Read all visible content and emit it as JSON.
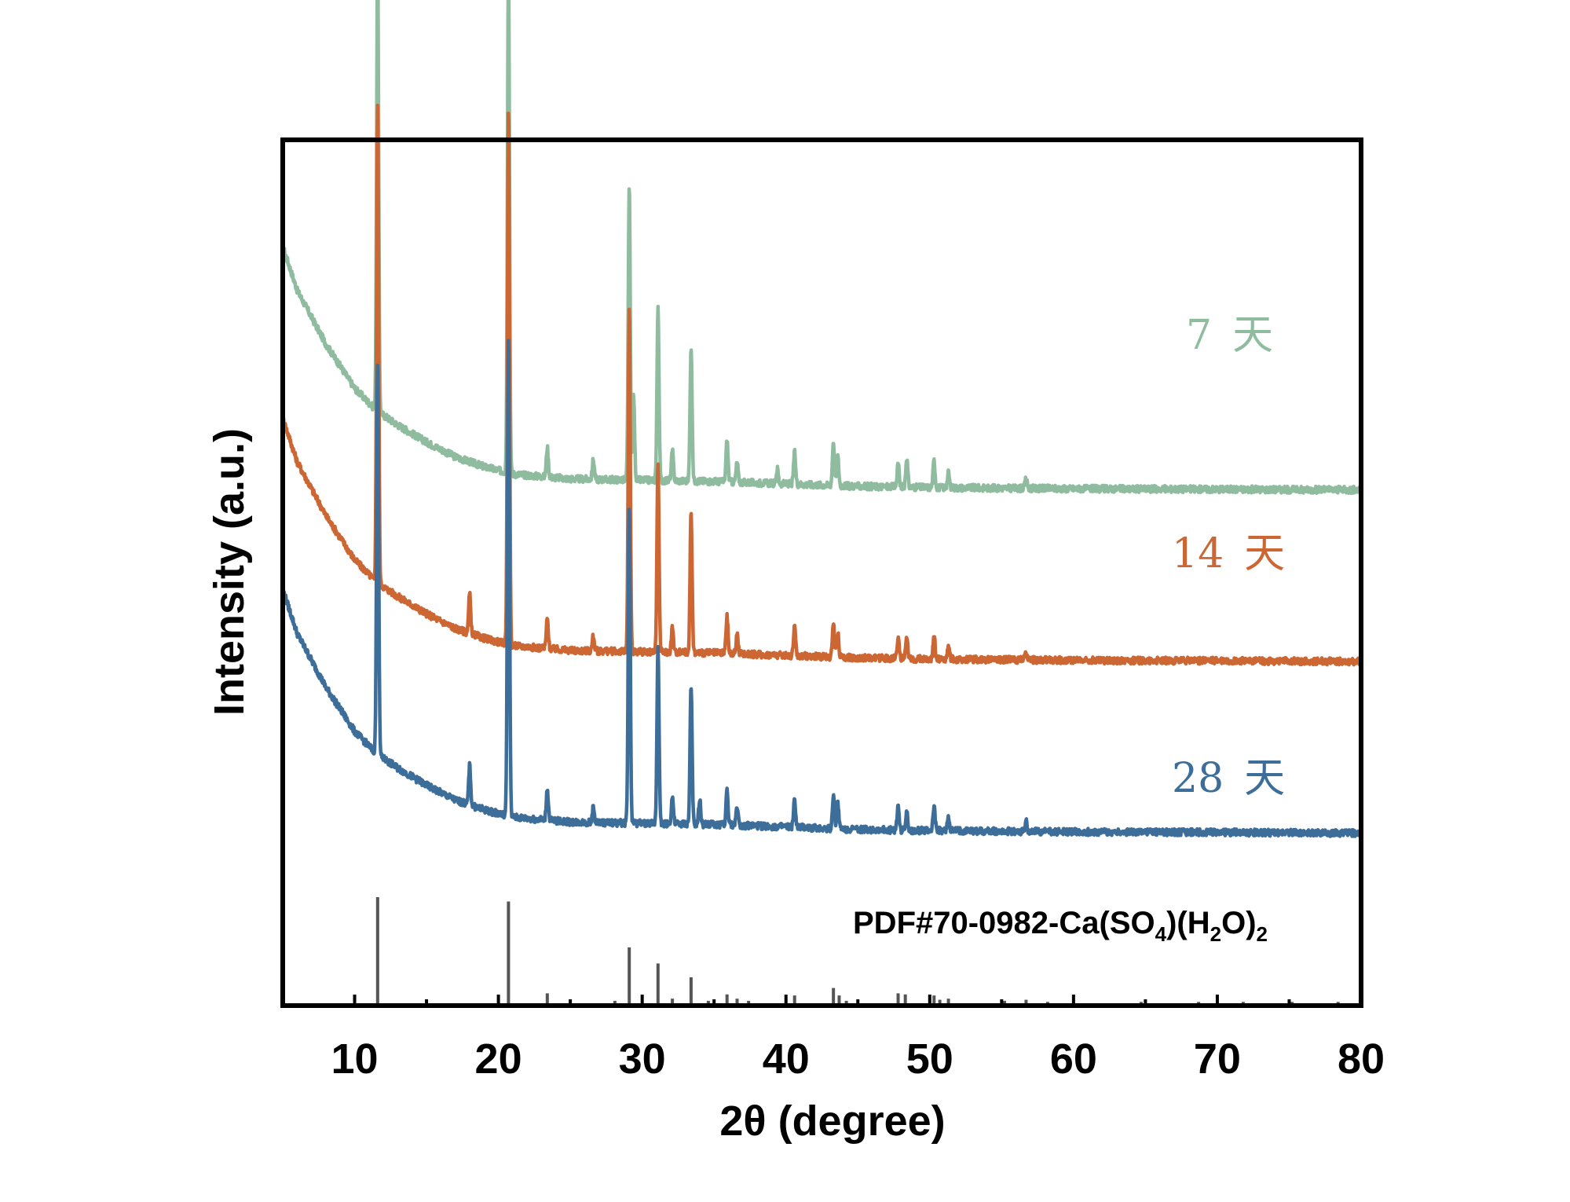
{
  "chart_data": {
    "type": "line",
    "xlabel": "2θ (degree)",
    "ylabel": "Intensity (a.u.)",
    "xlim": [
      5,
      80
    ],
    "xticks": [
      10,
      20,
      30,
      40,
      50,
      60,
      70,
      80
    ],
    "y_units": "arbitrary (stacked, offset)",
    "series": [
      {
        "name": "7 天",
        "label_number": "7",
        "label_unit": "天",
        "color": "#8fbc9f",
        "offset": 1.4,
        "baseline_points": [
          [
            5,
            1.0
          ],
          [
            6,
            0.82
          ],
          [
            8,
            0.6
          ],
          [
            10,
            0.42
          ],
          [
            11.5,
            0.33
          ],
          [
            13,
            0.27
          ],
          [
            15,
            0.2
          ],
          [
            17,
            0.14
          ],
          [
            19,
            0.1
          ],
          [
            21,
            0.07
          ],
          [
            25,
            0.05
          ],
          [
            30,
            0.045
          ],
          [
            35,
            0.04
          ],
          [
            40,
            0.03
          ],
          [
            45,
            0.02
          ],
          [
            50,
            0.015
          ],
          [
            60,
            0.01
          ],
          [
            70,
            0.008
          ],
          [
            80,
            0.005
          ]
        ],
        "peaks": [
          [
            11.6,
            1.85
          ],
          [
            20.7,
            2.1
          ],
          [
            23.4,
            0.12
          ],
          [
            26.6,
            0.08
          ],
          [
            29.1,
            1.2
          ],
          [
            29.4,
            0.35
          ],
          [
            31.1,
            0.7
          ],
          [
            32.1,
            0.12
          ],
          [
            33.4,
            0.55
          ],
          [
            35.9,
            0.17
          ],
          [
            36.6,
            0.08
          ],
          [
            39.4,
            0.06
          ],
          [
            40.6,
            0.13
          ],
          [
            43.3,
            0.18
          ],
          [
            43.6,
            0.12
          ],
          [
            47.8,
            0.1
          ],
          [
            48.4,
            0.12
          ],
          [
            50.3,
            0.11
          ],
          [
            51.3,
            0.06
          ],
          [
            56.7,
            0.04
          ]
        ]
      },
      {
        "name": "14 天",
        "label_number": "14",
        "label_unit": "天",
        "color": "#cc6633",
        "offset": 0.7,
        "baseline_points": [
          [
            5,
            1.0
          ],
          [
            6,
            0.82
          ],
          [
            8,
            0.6
          ],
          [
            10,
            0.42
          ],
          [
            11.5,
            0.33
          ],
          [
            13,
            0.27
          ],
          [
            15,
            0.2
          ],
          [
            17,
            0.14
          ],
          [
            19,
            0.1
          ],
          [
            21,
            0.07
          ],
          [
            25,
            0.05
          ],
          [
            30,
            0.045
          ],
          [
            35,
            0.04
          ],
          [
            40,
            0.03
          ],
          [
            45,
            0.02
          ],
          [
            50,
            0.015
          ],
          [
            60,
            0.01
          ],
          [
            70,
            0.008
          ],
          [
            80,
            0.005
          ]
        ],
        "peaks": [
          [
            11.6,
            1.95
          ],
          [
            18.0,
            0.16
          ],
          [
            20.7,
            2.2
          ],
          [
            23.4,
            0.12
          ],
          [
            26.6,
            0.06
          ],
          [
            29.1,
            1.4
          ],
          [
            31.1,
            0.78
          ],
          [
            32.1,
            0.1
          ],
          [
            33.4,
            0.57
          ],
          [
            35.9,
            0.15
          ],
          [
            36.6,
            0.08
          ],
          [
            40.6,
            0.13
          ],
          [
            43.3,
            0.14
          ],
          [
            43.6,
            0.1
          ],
          [
            47.8,
            0.09
          ],
          [
            48.4,
            0.08
          ],
          [
            50.3,
            0.1
          ],
          [
            51.3,
            0.05
          ],
          [
            56.7,
            0.03
          ]
        ]
      },
      {
        "name": "28 天",
        "label_number": "28",
        "label_unit": "天",
        "color": "#3d6e9a",
        "offset": 0.0,
        "baseline_points": [
          [
            5,
            1.0
          ],
          [
            6,
            0.82
          ],
          [
            8,
            0.6
          ],
          [
            10,
            0.42
          ],
          [
            11.5,
            0.33
          ],
          [
            13,
            0.27
          ],
          [
            15,
            0.2
          ],
          [
            17,
            0.14
          ],
          [
            19,
            0.1
          ],
          [
            21,
            0.07
          ],
          [
            25,
            0.05
          ],
          [
            30,
            0.045
          ],
          [
            35,
            0.04
          ],
          [
            40,
            0.03
          ],
          [
            45,
            0.02
          ],
          [
            50,
            0.015
          ],
          [
            60,
            0.01
          ],
          [
            70,
            0.008
          ],
          [
            80,
            0.005
          ]
        ],
        "peaks": [
          [
            11.6,
            1.6
          ],
          [
            18.0,
            0.16
          ],
          [
            20.7,
            1.97
          ],
          [
            23.4,
            0.13
          ],
          [
            26.6,
            0.06
          ],
          [
            29.1,
            1.3
          ],
          [
            31.1,
            0.73
          ],
          [
            32.1,
            0.11
          ],
          [
            33.4,
            0.57
          ],
          [
            34.0,
            0.1
          ],
          [
            35.9,
            0.14
          ],
          [
            36.6,
            0.08
          ],
          [
            40.6,
            0.11
          ],
          [
            43.3,
            0.14
          ],
          [
            43.6,
            0.11
          ],
          [
            47.8,
            0.1
          ],
          [
            48.4,
            0.08
          ],
          [
            50.3,
            0.1
          ],
          [
            51.3,
            0.06
          ],
          [
            56.7,
            0.04
          ]
        ]
      }
    ],
    "reference": {
      "name": "PDF#70-0982-Ca(SO4)(H2O)2",
      "label_prefix": "PDF#70-0982-Ca(SO",
      "sub1": "4",
      "label_mid": ")(H",
      "sub2": "2",
      "label_mid2": "O)",
      "sub3": "2",
      "color": "#555555",
      "sticks": [
        [
          11.6,
          100
        ],
        [
          20.7,
          96
        ],
        [
          23.4,
          10
        ],
        [
          28.1,
          3
        ],
        [
          29.1,
          53
        ],
        [
          31.1,
          38
        ],
        [
          32.1,
          5
        ],
        [
          33.4,
          25
        ],
        [
          34.6,
          3
        ],
        [
          35.9,
          9
        ],
        [
          36.6,
          5
        ],
        [
          37.4,
          3
        ],
        [
          40.6,
          8
        ],
        [
          43.3,
          15
        ],
        [
          43.7,
          8
        ],
        [
          44.2,
          3
        ],
        [
          47.8,
          10
        ],
        [
          48.3,
          9
        ],
        [
          50.3,
          8
        ],
        [
          50.7,
          4
        ],
        [
          51.3,
          5
        ],
        [
          55.2,
          3
        ],
        [
          56.7,
          4
        ],
        [
          58.2,
          2
        ],
        [
          64.7,
          2
        ],
        [
          68.7,
          2
        ],
        [
          71.8,
          2
        ],
        [
          75.2,
          2
        ],
        [
          78.4,
          2
        ]
      ]
    }
  }
}
